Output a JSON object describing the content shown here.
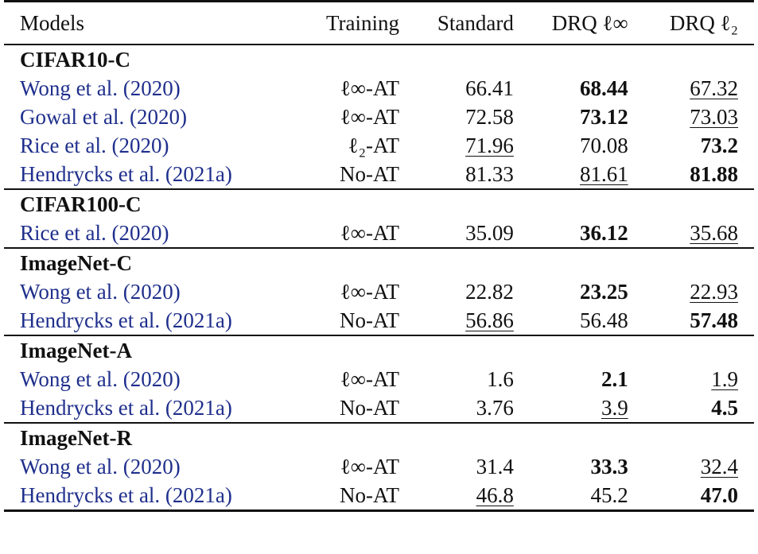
{
  "header": {
    "models": "Models",
    "training": "Training",
    "standard": "Standard",
    "drq_linf": "DRQ ℓ∞",
    "drq_l2": "DRQ ℓ₂"
  },
  "sections": [
    {
      "name": "CIFAR10-C",
      "rows": [
        {
          "model": "Wong et al. (2020)",
          "training": "ℓ∞-AT",
          "standard": "66.41",
          "drq_linf": "68.44",
          "drq_l2": "67.32",
          "bold": "drq_linf",
          "underline": "drq_l2"
        },
        {
          "model": "Gowal et al. (2020)",
          "training": "ℓ∞-AT",
          "standard": "72.58",
          "drq_linf": "73.12",
          "drq_l2": "73.03",
          "bold": "drq_linf",
          "underline": "drq_l2"
        },
        {
          "model": "Rice et al. (2020)",
          "training": "ℓ₂-AT",
          "standard": "71.96",
          "drq_linf": "70.08",
          "drq_l2": "73.2",
          "bold": "drq_l2",
          "underline": "standard"
        },
        {
          "model": "Hendrycks et al. (2021a)",
          "training": "No-AT",
          "standard": "81.33",
          "drq_linf": "81.61",
          "drq_l2": "81.88",
          "bold": "drq_l2",
          "underline": "drq_linf"
        }
      ]
    },
    {
      "name": "CIFAR100-C",
      "rows": [
        {
          "model": "Rice et al. (2020)",
          "training": "ℓ∞-AT",
          "standard": "35.09",
          "drq_linf": "36.12",
          "drq_l2": "35.68",
          "bold": "drq_linf",
          "underline": "drq_l2"
        }
      ]
    },
    {
      "name": "ImageNet-C",
      "rows": [
        {
          "model": "Wong et al. (2020)",
          "training": "ℓ∞-AT",
          "standard": "22.82",
          "drq_linf": "23.25",
          "drq_l2": "22.93",
          "bold": "drq_linf",
          "underline": "drq_l2"
        },
        {
          "model": "Hendrycks et al. (2021a)",
          "training": "No-AT",
          "standard": "56.86",
          "drq_linf": "56.48",
          "drq_l2": "57.48",
          "bold": "drq_l2",
          "underline": "standard"
        }
      ]
    },
    {
      "name": "ImageNet-A",
      "rows": [
        {
          "model": "Wong et al. (2020)",
          "training": "ℓ∞-AT",
          "standard": "1.6",
          "drq_linf": "2.1",
          "drq_l2": "1.9",
          "bold": "drq_linf",
          "underline": "drq_l2"
        },
        {
          "model": "Hendrycks et al. (2021a)",
          "training": "No-AT",
          "standard": "3.76",
          "drq_linf": "3.9",
          "drq_l2": "4.5",
          "bold": "drq_l2",
          "underline": "drq_linf"
        }
      ]
    },
    {
      "name": "ImageNet-R",
      "rows": [
        {
          "model": "Wong et al. (2020)",
          "training": "ℓ∞-AT",
          "standard": "31.4",
          "drq_linf": "33.3",
          "drq_l2": "32.4",
          "bold": "drq_linf",
          "underline": "drq_l2"
        },
        {
          "model": "Hendrycks et al. (2021a)",
          "training": "No-AT",
          "standard": "46.8",
          "drq_linf": "45.2",
          "drq_l2": "47.0",
          "bold": "drq_l2",
          "underline": "standard"
        }
      ]
    }
  ],
  "colors": {
    "citation": "#1f2f8c",
    "text": "#111111",
    "rule": "#111111"
  }
}
